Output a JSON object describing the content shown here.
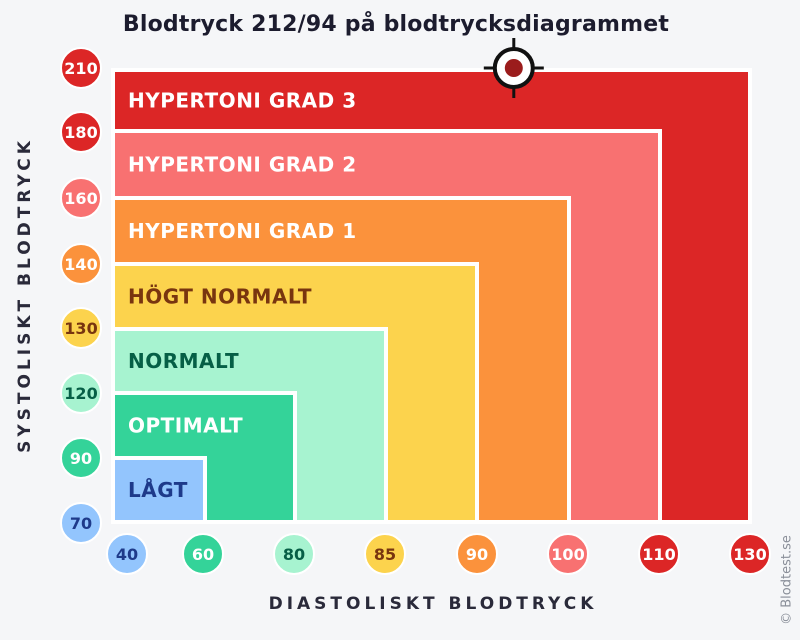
{
  "chart_data": {
    "type": "table",
    "title": "Blodtryck 212/94 på blodtrycksdiagrammet",
    "xlabel": "DIASTOLISKT BLODTRYCK",
    "ylabel": "SYSTOLISKT BLODTRYCK",
    "x_ticks": [
      "40",
      "60",
      "80",
      "85",
      "90",
      "100",
      "110",
      "130"
    ],
    "y_ticks": [
      "70",
      "90",
      "120",
      "130",
      "140",
      "160",
      "180",
      "210"
    ],
    "categories": [
      {
        "label": "HYPERTONI GRAD 3",
        "color": "#dc2626",
        "text_color": "#ffffff",
        "x_max_index": 7,
        "y_max_index": 7
      },
      {
        "label": "HYPERTONI GRAD 2",
        "color": "#f87171",
        "text_color": "#ffffff",
        "x_max_index": 6,
        "y_max_index": 6
      },
      {
        "label": "HYPERTONI GRAD 1",
        "color": "#fb923c",
        "text_color": "#ffffff",
        "x_max_index": 5,
        "y_max_index": 5
      },
      {
        "label": "HÖGT NORMALT",
        "color": "#fcd34d",
        "text_color": "#78350f",
        "x_max_index": 4,
        "y_max_index": 4
      },
      {
        "label": "NORMALT",
        "color": "#a7f3d0",
        "text_color": "#065f46",
        "x_max_index": 3,
        "y_max_index": 3
      },
      {
        "label": "OPTIMALT",
        "color": "#34d399",
        "text_color": "#ffffff",
        "x_max_index": 2,
        "y_max_index": 2
      },
      {
        "label": "LÅGT",
        "color": "#93c5fd",
        "text_color": "#1e3a8a",
        "x_max_index": 1,
        "y_max_index": 1
      }
    ],
    "tick_colors": [
      "#93c5fd",
      "#34d399",
      "#a7f3d0",
      "#fcd34d",
      "#fb923c",
      "#f87171",
      "#dc2626",
      "#dc2626"
    ],
    "tick_text_colors": [
      "#1e3a8a",
      "#ffffff",
      "#065f46",
      "#78350f",
      "#ffffff",
      "#ffffff",
      "#ffffff",
      "#ffffff"
    ],
    "marker": {
      "systolic": 212,
      "diastolic": 94,
      "icon": "target-marker-icon"
    }
  },
  "watermark": "© Blodtest.se"
}
